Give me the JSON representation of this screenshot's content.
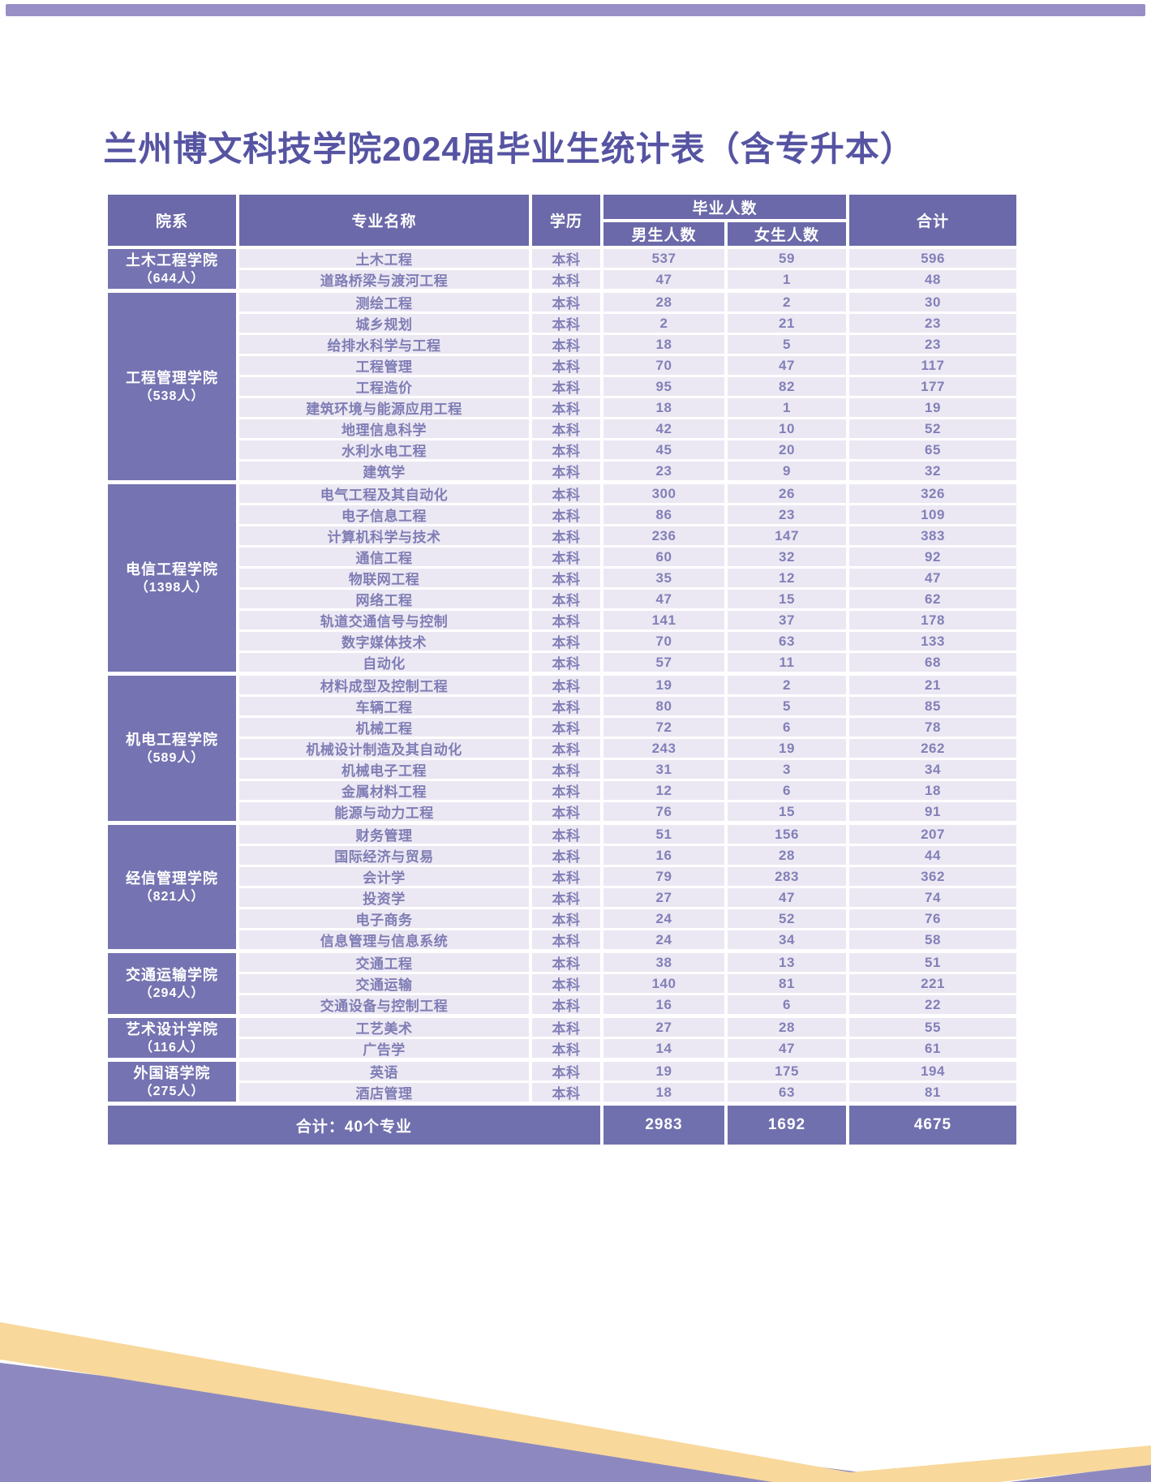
{
  "page": {
    "title": "兰州博文科技学院2024届毕业生统计表（含专升本）"
  },
  "colors": {
    "header-bg": "#6b69a9",
    "college-bg": "#7573b1",
    "footer-bg": "#7170ae",
    "row-bg": "#ece8f3",
    "row-text": "#8280b8",
    "title-color": "#5654a2",
    "topbar-color": "#988fc7",
    "deco-yellow": "#f8d89b",
    "deco-purple": "#8d89c0"
  },
  "table": {
    "headers": {
      "college": "院系",
      "major": "专业名称",
      "degree": "学历",
      "graduates": "毕业人数",
      "male": "男生人数",
      "female": "女生人数",
      "total": "合计"
    },
    "groups": [
      {
        "college": "土木工程学院",
        "count_label": "（644人）",
        "rows": [
          {
            "major": "土木工程",
            "degree": "本科",
            "male": 537,
            "female": 59,
            "total": 596
          },
          {
            "major": "道路桥梁与渡河工程",
            "degree": "本科",
            "male": 47,
            "female": 1,
            "total": 48
          }
        ]
      },
      {
        "college": "工程管理学院",
        "count_label": "（538人）",
        "rows": [
          {
            "major": "测绘工程",
            "degree": "本科",
            "male": 28,
            "female": 2,
            "total": 30
          },
          {
            "major": "城乡规划",
            "degree": "本科",
            "male": 2,
            "female": 21,
            "total": 23
          },
          {
            "major": "给排水科学与工程",
            "degree": "本科",
            "male": 18,
            "female": 5,
            "total": 23
          },
          {
            "major": "工程管理",
            "degree": "本科",
            "male": 70,
            "female": 47,
            "total": 117
          },
          {
            "major": "工程造价",
            "degree": "本科",
            "male": 95,
            "female": 82,
            "total": 177
          },
          {
            "major": "建筑环境与能源应用工程",
            "degree": "本科",
            "male": 18,
            "female": 1,
            "total": 19
          },
          {
            "major": "地理信息科学",
            "degree": "本科",
            "male": 42,
            "female": 10,
            "total": 52
          },
          {
            "major": "水利水电工程",
            "degree": "本科",
            "male": 45,
            "female": 20,
            "total": 65
          },
          {
            "major": "建筑学",
            "degree": "本科",
            "male": 23,
            "female": 9,
            "total": 32
          }
        ]
      },
      {
        "college": "电信工程学院",
        "count_label": "（1398人）",
        "rows": [
          {
            "major": "电气工程及其自动化",
            "degree": "本科",
            "male": 300,
            "female": 26,
            "total": 326
          },
          {
            "major": "电子信息工程",
            "degree": "本科",
            "male": 86,
            "female": 23,
            "total": 109
          },
          {
            "major": "计算机科学与技术",
            "degree": "本科",
            "male": 236,
            "female": 147,
            "total": 383
          },
          {
            "major": "通信工程",
            "degree": "本科",
            "male": 60,
            "female": 32,
            "total": 92
          },
          {
            "major": "物联网工程",
            "degree": "本科",
            "male": 35,
            "female": 12,
            "total": 47
          },
          {
            "major": "网络工程",
            "degree": "本科",
            "male": 47,
            "female": 15,
            "total": 62
          },
          {
            "major": "轨道交通信号与控制",
            "degree": "本科",
            "male": 141,
            "female": 37,
            "total": 178
          },
          {
            "major": "数字媒体技术",
            "degree": "本科",
            "male": 70,
            "female": 63,
            "total": 133
          },
          {
            "major": "自动化",
            "degree": "本科",
            "male": 57,
            "female": 11,
            "total": 68
          }
        ]
      },
      {
        "college": "机电工程学院",
        "count_label": "（589人）",
        "rows": [
          {
            "major": "材料成型及控制工程",
            "degree": "本科",
            "male": 19,
            "female": 2,
            "total": 21
          },
          {
            "major": "车辆工程",
            "degree": "本科",
            "male": 80,
            "female": 5,
            "total": 85
          },
          {
            "major": "机械工程",
            "degree": "本科",
            "male": 72,
            "female": 6,
            "total": 78
          },
          {
            "major": "机械设计制造及其自动化",
            "degree": "本科",
            "male": 243,
            "female": 19,
            "total": 262
          },
          {
            "major": "机械电子工程",
            "degree": "本科",
            "male": 31,
            "female": 3,
            "total": 34
          },
          {
            "major": "金属材料工程",
            "degree": "本科",
            "male": 12,
            "female": 6,
            "total": 18
          },
          {
            "major": "能源与动力工程",
            "degree": "本科",
            "male": 76,
            "female": 15,
            "total": 91
          }
        ]
      },
      {
        "college": "经信管理学院",
        "count_label": "（821人）",
        "rows": [
          {
            "major": "财务管理",
            "degree": "本科",
            "male": 51,
            "female": 156,
            "total": 207
          },
          {
            "major": "国际经济与贸易",
            "degree": "本科",
            "male": 16,
            "female": 28,
            "total": 44
          },
          {
            "major": "会计学",
            "degree": "本科",
            "male": 79,
            "female": 283,
            "total": 362
          },
          {
            "major": "投资学",
            "degree": "本科",
            "male": 27,
            "female": 47,
            "total": 74
          },
          {
            "major": "电子商务",
            "degree": "本科",
            "male": 24,
            "female": 52,
            "total": 76
          },
          {
            "major": "信息管理与信息系统",
            "degree": "本科",
            "male": 24,
            "female": 34,
            "total": 58
          }
        ]
      },
      {
        "college": "交通运输学院",
        "count_label": "（294人）",
        "rows": [
          {
            "major": "交通工程",
            "degree": "本科",
            "male": 38,
            "female": 13,
            "total": 51
          },
          {
            "major": "交通运输",
            "degree": "本科",
            "male": 140,
            "female": 81,
            "total": 221
          },
          {
            "major": "交通设备与控制工程",
            "degree": "本科",
            "male": 16,
            "female": 6,
            "total": 22
          }
        ]
      },
      {
        "college": "艺术设计学院",
        "count_label": "（116人）",
        "rows": [
          {
            "major": "工艺美术",
            "degree": "本科",
            "male": 27,
            "female": 28,
            "total": 55
          },
          {
            "major": "广告学",
            "degree": "本科",
            "male": 14,
            "female": 47,
            "total": 61
          }
        ]
      },
      {
        "college": "外国语学院",
        "count_label": "（275人）",
        "rows": [
          {
            "major": "英语",
            "degree": "本科",
            "male": 19,
            "female": 175,
            "total": 194
          },
          {
            "major": "酒店管理",
            "degree": "本科",
            "male": 18,
            "female": 63,
            "total": 81
          }
        ]
      }
    ],
    "footer": {
      "label": "合计：40个专业",
      "male": "2983",
      "female": "1692",
      "total": "4675"
    }
  }
}
